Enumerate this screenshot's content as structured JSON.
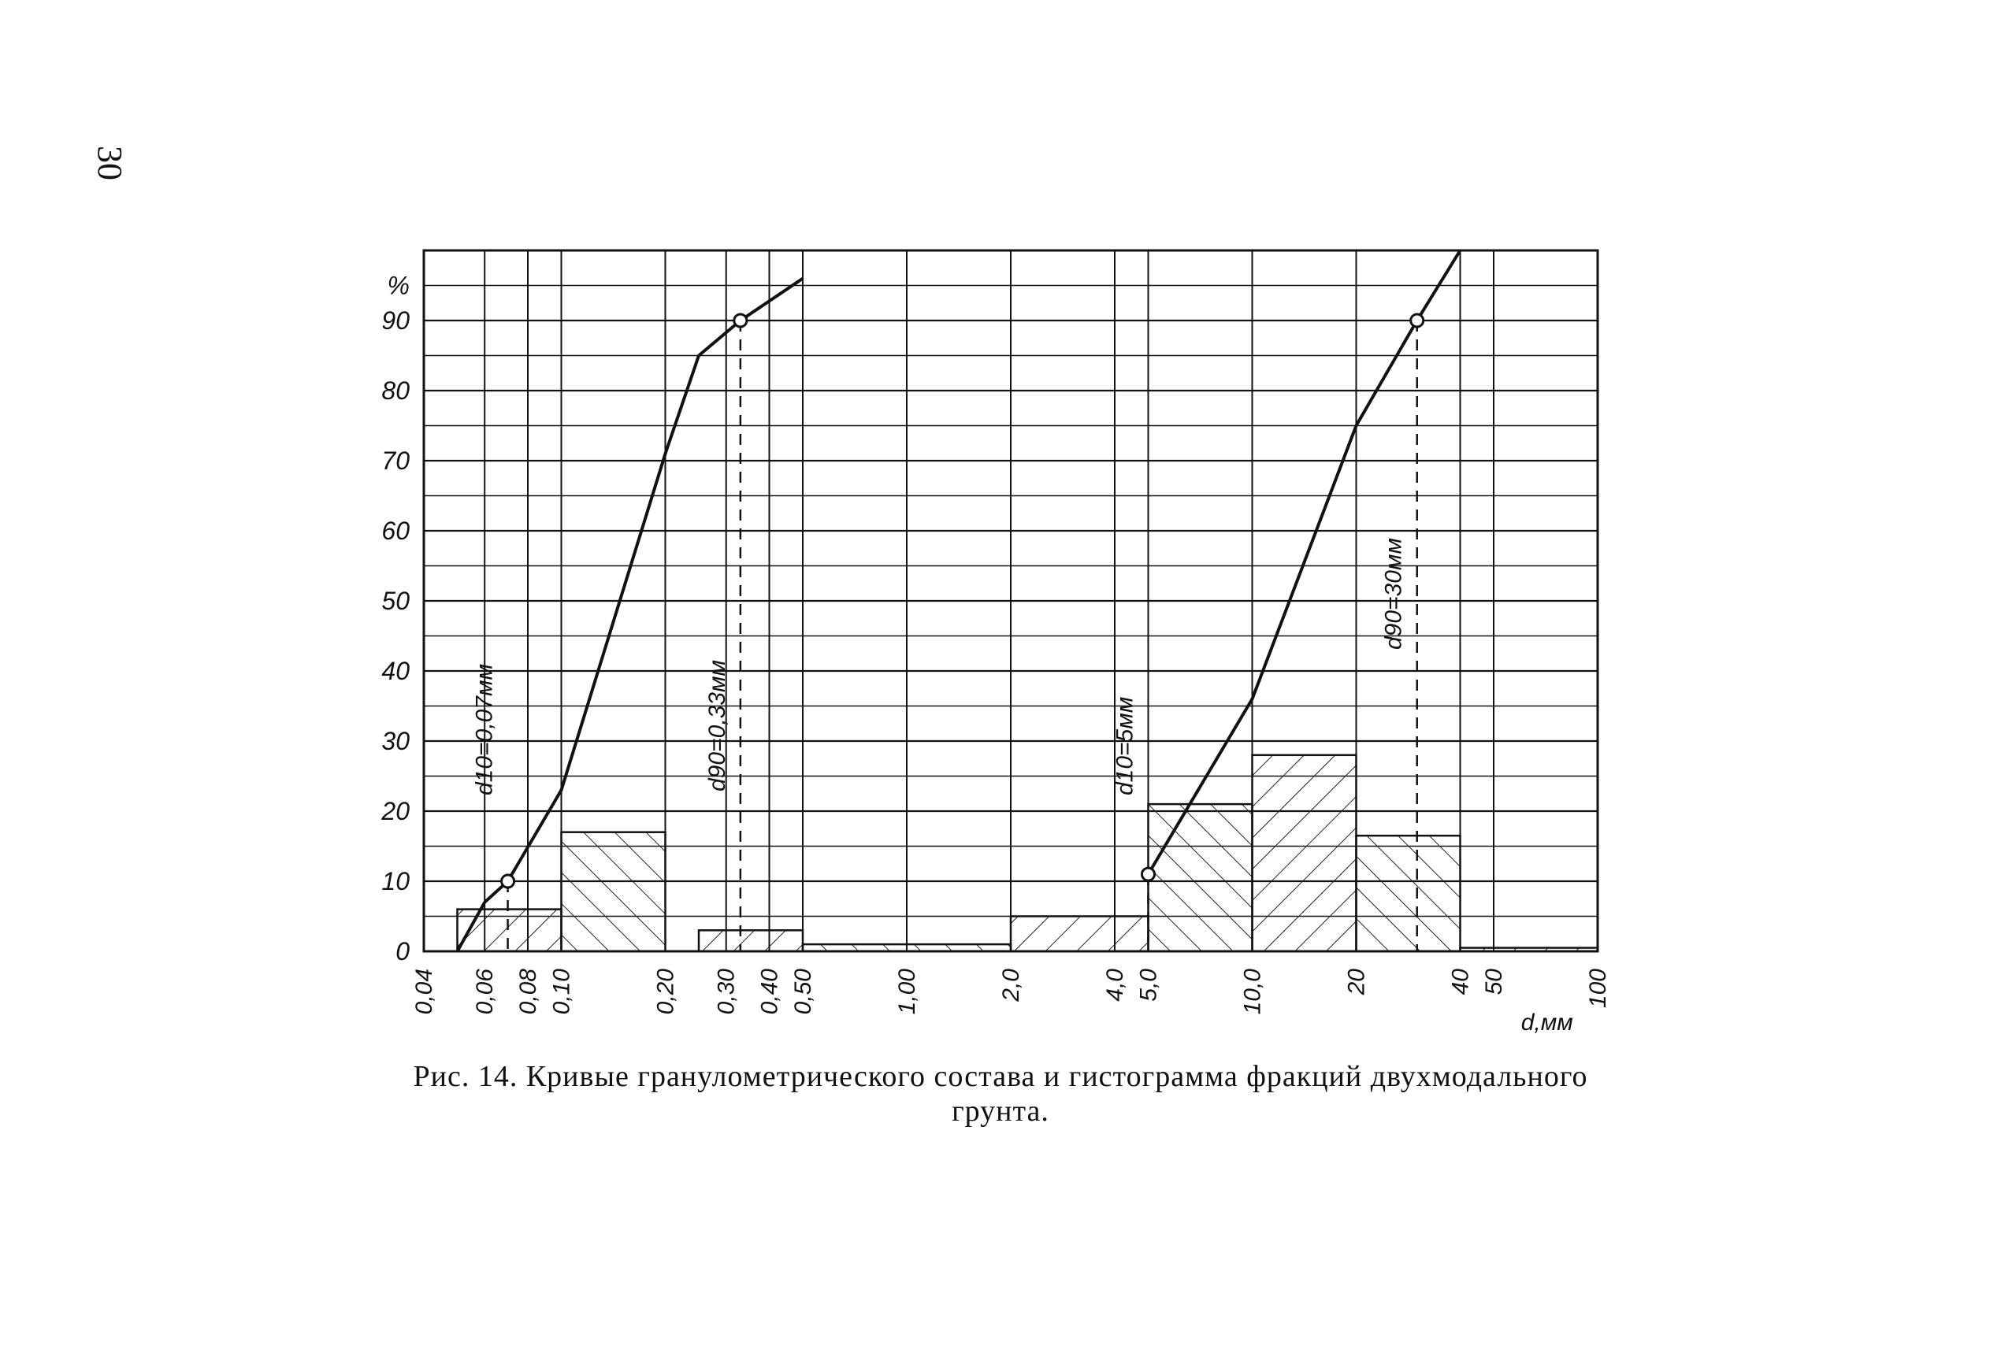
{
  "page": {
    "number": "30"
  },
  "caption": {
    "line1": "Рис. 14. Кривые гранулометрического состава и гистограмма фракций двухмодального",
    "line2": "грунта."
  },
  "chart_data": {
    "type": "line",
    "x_scale": "log",
    "xlabel": "d,мм",
    "ylabel": "%",
    "xlim": [
      0.04,
      100
    ],
    "ylim": [
      0,
      100
    ],
    "grid": true,
    "x_ticks": [
      {
        "value": 0.04,
        "label": "0,04"
      },
      {
        "value": 0.06,
        "label": "0,06"
      },
      {
        "value": 0.08,
        "label": "0,08"
      },
      {
        "value": 0.1,
        "label": "0,10"
      },
      {
        "value": 0.2,
        "label": "0,20"
      },
      {
        "value": 0.3,
        "label": "0,30"
      },
      {
        "value": 0.4,
        "label": "0,40"
      },
      {
        "value": 0.5,
        "label": "0,50"
      },
      {
        "value": 1.0,
        "label": "1,00"
      },
      {
        "value": 2.0,
        "label": "2,0"
      },
      {
        "value": 4.0,
        "label": "4,0"
      },
      {
        "value": 5.0,
        "label": "5,0"
      },
      {
        "value": 10.0,
        "label": "10,0"
      },
      {
        "value": 20,
        "label": "20"
      },
      {
        "value": 40,
        "label": "40"
      },
      {
        "value": 50,
        "label": "50"
      },
      {
        "value": 100,
        "label": "100"
      }
    ],
    "y_ticks": [
      {
        "value": 0,
        "label": "0"
      },
      {
        "value": 10,
        "label": "10"
      },
      {
        "value": 20,
        "label": "20"
      },
      {
        "value": 30,
        "label": "30"
      },
      {
        "value": 40,
        "label": "40"
      },
      {
        "value": 50,
        "label": "50"
      },
      {
        "value": 60,
        "label": "60"
      },
      {
        "value": 70,
        "label": "70"
      },
      {
        "value": 80,
        "label": "80"
      },
      {
        "value": 90,
        "label": "90"
      },
      {
        "value": 100,
        "label": "%"
      }
    ],
    "curves": [
      {
        "points": [
          {
            "x": 0.05,
            "y": 0
          },
          {
            "x": 0.06,
            "y": 7
          },
          {
            "x": 0.07,
            "y": 10
          },
          {
            "x": 0.1,
            "y": 23
          },
          {
            "x": 0.2,
            "y": 71
          },
          {
            "x": 0.25,
            "y": 85
          },
          {
            "x": 0.33,
            "y": 90
          },
          {
            "x": 0.5,
            "y": 96
          }
        ]
      },
      {
        "points": [
          {
            "x": 5.0,
            "y": 11
          },
          {
            "x": 10.0,
            "y": 36
          },
          {
            "x": 20,
            "y": 75
          },
          {
            "x": 30,
            "y": 90
          },
          {
            "x": 40,
            "y": 100
          }
        ]
      }
    ],
    "histogram": [
      {
        "from": 0.05,
        "to": 0.1,
        "value": 6
      },
      {
        "from": 0.1,
        "to": 0.2,
        "value": 17
      },
      {
        "from": 0.25,
        "to": 0.5,
        "value": 3
      },
      {
        "from": 0.5,
        "to": 2.0,
        "value": 1
      },
      {
        "from": 2.0,
        "to": 5.0,
        "value": 5
      },
      {
        "from": 5.0,
        "to": 10.0,
        "value": 21
      },
      {
        "from": 10.0,
        "to": 20,
        "value": 28
      },
      {
        "from": 20,
        "to": 40,
        "value": 16.5
      },
      {
        "from": 40,
        "to": 100,
        "value": 0.5
      }
    ],
    "markers": [
      {
        "x": 0.07,
        "y": 10,
        "label": "d10=0,07мм"
      },
      {
        "x": 0.33,
        "y": 90,
        "label": "d90=0,33мм"
      },
      {
        "x": 5.0,
        "y": 11,
        "label": "d10=5мм"
      },
      {
        "x": 30,
        "y": 90,
        "label": "d90=30мм"
      }
    ]
  }
}
